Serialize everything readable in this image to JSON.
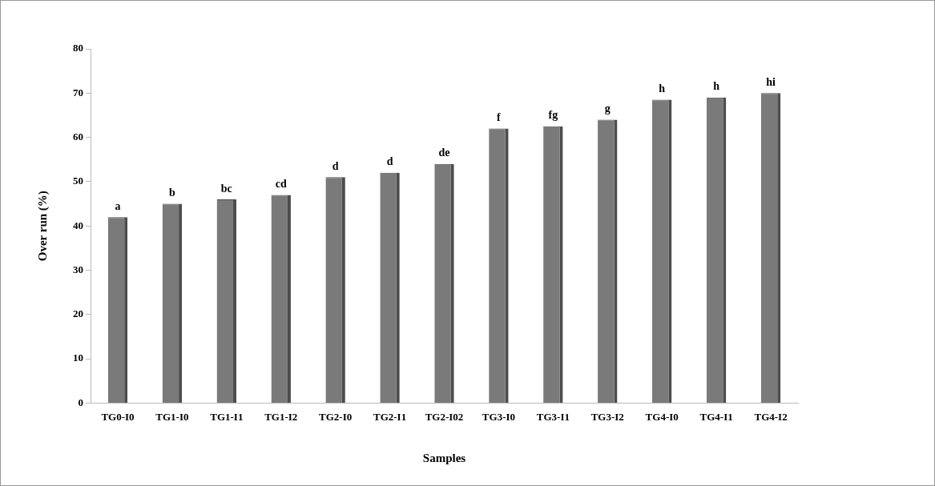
{
  "chart_data": {
    "type": "bar",
    "xlabel": "Samples",
    "ylabel": "Over run (%)",
    "categories": [
      "TG0-I0",
      "TG1-I0",
      "TG1-I1",
      "TG1-I2",
      "TG2-I0",
      "TG2-I1",
      "TG2-I02",
      "TG3-I0",
      "TG3-I1",
      "TG3-I2",
      "TG4-I0",
      "TG4-I1",
      "TG4-I2"
    ],
    "values": [
      42,
      45,
      46,
      47,
      51,
      52,
      54,
      62,
      62.5,
      64,
      68.5,
      69,
      70
    ],
    "color": "#7a7a7a",
    "ylim": [
      0,
      80
    ],
    "yticks": [
      0,
      10,
      20,
      30,
      40,
      50,
      60,
      70,
      80
    ],
    "grid": false,
    "legend": false,
    "annotations": [
      {
        "text": "a",
        "x": "TG0-I0",
        "y": 42
      },
      {
        "text": "b",
        "x": "TG1-I0",
        "y": 45
      },
      {
        "text": "bc",
        "x": "TG1-I1",
        "y": 46
      },
      {
        "text": "cd",
        "x": "TG1-I2",
        "y": 47
      },
      {
        "text": "d",
        "x": "TG2-I0",
        "y": 51
      },
      {
        "text": "d",
        "x": "TG2-I1",
        "y": 52
      },
      {
        "text": "de",
        "x": "TG2-I02",
        "y": 54
      },
      {
        "text": "f",
        "x": "TG3-I0",
        "y": 62
      },
      {
        "text": "fg",
        "x": "TG3-I1",
        "y": 62.5
      },
      {
        "text": "g",
        "x": "TG3-I2",
        "y": 64
      },
      {
        "text": "h",
        "x": "TG4-I0",
        "y": 68.5
      },
      {
        "text": "h",
        "x": "TG4-I1",
        "y": 69
      },
      {
        "text": "hi",
        "x": "TG4-I2",
        "y": 70
      }
    ]
  }
}
